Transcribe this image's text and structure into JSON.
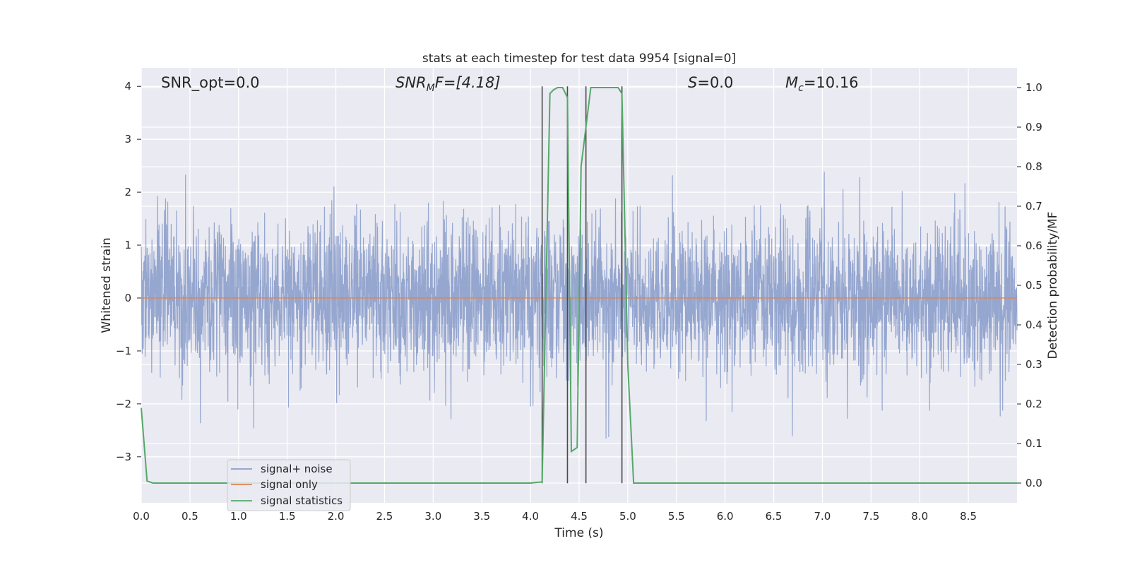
{
  "chart_data": {
    "type": "line",
    "title": "stats at each timestep for test data 9954 [signal=0]",
    "xlabel": "Time (s)",
    "ylabel_left": "Whitened strain",
    "ylabel_right": "Detection probability/MF",
    "xlim": [
      0,
      9.0
    ],
    "ylim_left": [
      -3.87,
      4.35
    ],
    "ylim_right": [
      -0.05,
      1.05
    ],
    "x_ticks": [
      "0.0",
      "0.5",
      "1.0",
      "1.5",
      "2.0",
      "2.5",
      "3.0",
      "3.5",
      "4.0",
      "4.5",
      "5.0",
      "5.5",
      "6.0",
      "6.5",
      "7.0",
      "7.5",
      "8.0",
      "8.5"
    ],
    "y_ticks_left": [
      "4",
      "3",
      "2",
      "1",
      "0",
      "−1",
      "−2",
      "−3"
    ],
    "y_ticks_right": [
      "1.0",
      "0.9",
      "0.8",
      "0.7",
      "0.6",
      "0.5",
      "0.4",
      "0.3",
      "0.2",
      "0.1",
      "0.0"
    ],
    "grid": true,
    "legend_placement": "lower-left",
    "annotations": {
      "snr_opt": "SNR_opt=0.0",
      "snr_mf_main": "SNR",
      "snr_mf_sub": "M",
      "snr_mf_rest": "F=[4.18]",
      "s_var": "S",
      "s_rest": "=0.0",
      "mc_var": "M",
      "mc_sub": "c",
      "mc_rest": "=10.16"
    },
    "series": [
      {
        "name": "signal+ noise",
        "color": "#8c9fcb",
        "sigma": 0.72,
        "n_samples": 3600,
        "seed": 9954
      },
      {
        "name": "signal only",
        "color": "#dd8452",
        "x": [
          0,
          9.0
        ],
        "y": [
          0,
          0
        ]
      },
      {
        "name": "signal statistics",
        "color": "#55a868",
        "axis": "right",
        "x": [
          0.0,
          0.06,
          0.12,
          4.0,
          4.12,
          4.2,
          4.24,
          4.28,
          4.33,
          4.38,
          4.42,
          4.48,
          4.52,
          4.57,
          4.62,
          4.68,
          4.75,
          4.9,
          4.94,
          5.0,
          5.06,
          5.1,
          9.0
        ],
        "y": [
          0.19,
          0.005,
          0.0,
          0.0,
          0.003,
          0.985,
          0.995,
          1.0,
          1.0,
          0.975,
          0.08,
          0.09,
          0.8,
          0.9,
          1.0,
          1.0,
          1.0,
          1.0,
          0.985,
          0.3,
          0.0,
          0.0,
          0.0
        ]
      }
    ],
    "vertical_lines": {
      "color": "#4a4a4a",
      "x": [
        4.12,
        4.38,
        4.57,
        4.94
      ],
      "y_top": 4.0,
      "y_bottom": -3.5
    }
  }
}
